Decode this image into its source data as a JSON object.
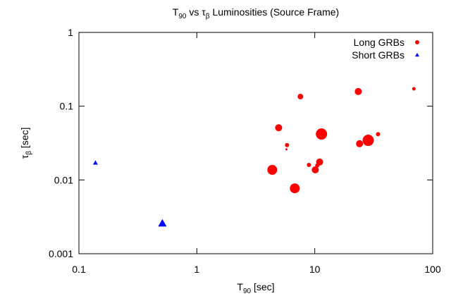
{
  "chart_data": {
    "type": "scatter",
    "title": [
      "T",
      "90",
      " vs τ",
      "β",
      " Luminosities (Source Frame)"
    ],
    "x_label": [
      "T",
      "90",
      " [sec]"
    ],
    "y_label": [
      "τ",
      "β",
      " [sec]"
    ],
    "xscale": "log",
    "yscale": "log",
    "xlim": [
      0.1,
      100
    ],
    "ylim": [
      0.001,
      1
    ],
    "xticks": [
      0.1,
      1,
      10,
      100
    ],
    "yticks": [
      0.001,
      0.01,
      0.1,
      1
    ],
    "legend": "top-right",
    "series": [
      {
        "name": "Long GRBs",
        "color": "#ff0000",
        "marker": "circle",
        "x": [
          4.36,
          4.94,
          5.82,
          5.75,
          6.77,
          7.56,
          8.92,
          10.1,
          10.5,
          11.0,
          11.4,
          23.4,
          24.0,
          28.4,
          34.4,
          69.3
        ],
        "values": [
          0.0137,
          0.051,
          0.0297,
          0.026,
          0.0077,
          0.135,
          0.016,
          0.0137,
          0.0157,
          0.0175,
          0.042,
          0.158,
          0.031,
          0.0345,
          0.0417,
          0.172
        ],
        "sizes": [
          7,
          5,
          3,
          1.5,
          7,
          4,
          3,
          5,
          3,
          5,
          8,
          5,
          5,
          8,
          3,
          2.5
        ]
      },
      {
        "name": "Short GRBs",
        "color": "#0000ff",
        "marker": "triangle",
        "x": [
          0.138,
          0.51
        ],
        "values": [
          0.0171,
          0.00258
        ],
        "sizes": [
          3.5,
          6
        ]
      }
    ]
  }
}
